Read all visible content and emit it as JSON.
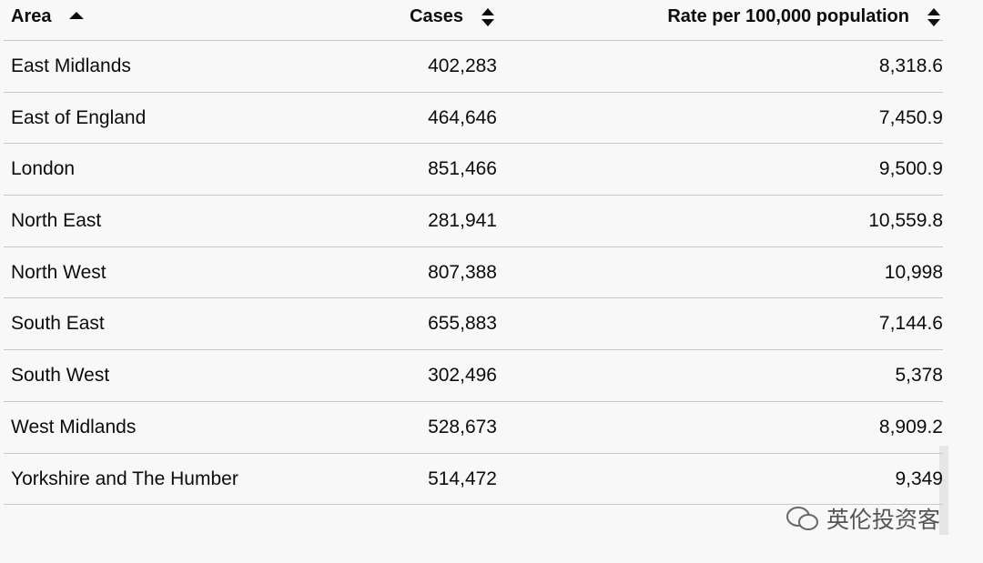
{
  "table": {
    "header": [
      "Area",
      "Cases",
      "Rate per 100,000 population"
    ],
    "rows": [
      [
        "East Midlands",
        "402,283",
        "8,318.6"
      ],
      [
        "East of England",
        "464,646",
        "7,450.9"
      ],
      [
        "London",
        "851,466",
        "9,500.9"
      ],
      [
        "North East",
        "281,941",
        "10,559.8"
      ],
      [
        "North West",
        "807,388",
        "10,998"
      ],
      [
        "South East",
        "655,883",
        "7,144.6"
      ],
      [
        "South West",
        "302,496",
        "5,378"
      ],
      [
        "West Midlands",
        "528,673",
        "8,909.2"
      ],
      [
        "Yorkshire and The Humber",
        "514,472",
        "9,349"
      ]
    ]
  },
  "watermark": "英伦投资客"
}
